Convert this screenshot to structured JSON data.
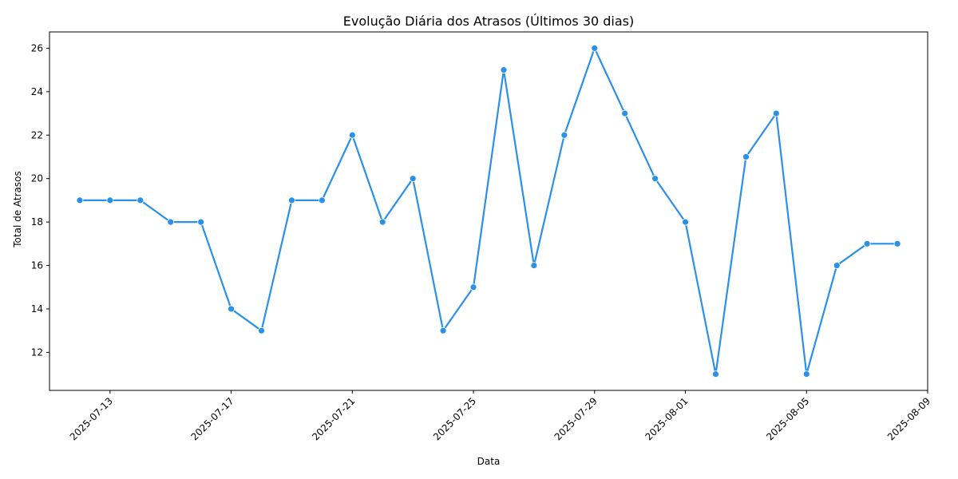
{
  "chart_data": {
    "type": "line",
    "title": "Evolução Diária dos Atrasos (Últimos 30 dias)",
    "xlabel": "Data",
    "ylabel": "Total de Atrasos",
    "x": [
      "2025-07-12",
      "2025-07-13",
      "2025-07-14",
      "2025-07-15",
      "2025-07-16",
      "2025-07-17",
      "2025-07-18",
      "2025-07-19",
      "2025-07-20",
      "2025-07-21",
      "2025-07-22",
      "2025-07-23",
      "2025-07-24",
      "2025-07-25",
      "2025-07-26",
      "2025-07-27",
      "2025-07-28",
      "2025-07-29",
      "2025-07-30",
      "2025-07-31",
      "2025-08-01",
      "2025-08-02",
      "2025-08-03",
      "2025-08-04",
      "2025-08-05",
      "2025-08-06",
      "2025-08-07",
      "2025-08-08"
    ],
    "series": [
      {
        "values": [
          19,
          19,
          19,
          18,
          18,
          14,
          13,
          19,
          19,
          22,
          18,
          20,
          13,
          15,
          25,
          16,
          22,
          26,
          23,
          20,
          18,
          11,
          21,
          23,
          11,
          16,
          17,
          17
        ]
      }
    ],
    "xticks": [
      "2025-07-13",
      "2025-07-17",
      "2025-07-21",
      "2025-07-25",
      "2025-07-29",
      "2025-08-01",
      "2025-08-05",
      "2025-08-09"
    ],
    "yticks": [
      12,
      14,
      16,
      18,
      20,
      22,
      24,
      26
    ],
    "xlim": [
      "2025-07-11",
      "2025-08-09"
    ],
    "ylim": [
      10.25,
      26.75
    ],
    "grid": false,
    "line_color": "#2a90e8",
    "marker_color": "#2a90e8"
  }
}
